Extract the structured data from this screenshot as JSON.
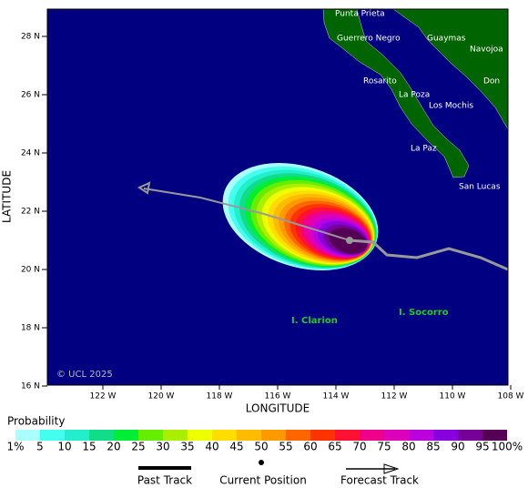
{
  "map": {
    "lat_ticks": [
      "28 N",
      "26 N",
      "24 N",
      "22 N",
      "20 N",
      "18 N",
      "16 N"
    ],
    "lon_ticks": [
      "122 W",
      "120 W",
      "118 W",
      "116 W",
      "114 W",
      "112 W",
      "110 W",
      "108 W"
    ],
    "x_label": "LONGITUDE",
    "y_label": "LATITUDE",
    "credit": "© UCL 2025",
    "places": [
      "Punta Prieta",
      "Guerrero Negro",
      "Guaymas",
      "Navojoa",
      "Rosarito",
      "La Poza",
      "Los Mochis",
      "Don",
      "La Paz",
      "San Lucas"
    ],
    "islands": [
      "I. Clarion",
      "I. Socorro"
    ]
  },
  "legend": {
    "title": "Probability",
    "labels": [
      "1%",
      "5",
      "10",
      "15",
      "20",
      "25",
      "30",
      "35",
      "40",
      "45",
      "50",
      "55",
      "60",
      "65",
      "70",
      "75",
      "80",
      "85",
      "90",
      "95",
      "100%"
    ],
    "colors": [
      "#aaffff",
      "#44ffee",
      "#22eecc",
      "#11dd88",
      "#00ee33",
      "#66ee00",
      "#aaee00",
      "#eeff00",
      "#ffdd00",
      "#ffbb00",
      "#ff9900",
      "#ff6600",
      "#ff3300",
      "#ff1133",
      "#ee0088",
      "#dd00bb",
      "#bb00dd",
      "#8800dd",
      "#770099",
      "#550055"
    ]
  },
  "track_key": {
    "past": "Past Track",
    "current": "Current Position",
    "forecast": "Forecast Track"
  }
}
